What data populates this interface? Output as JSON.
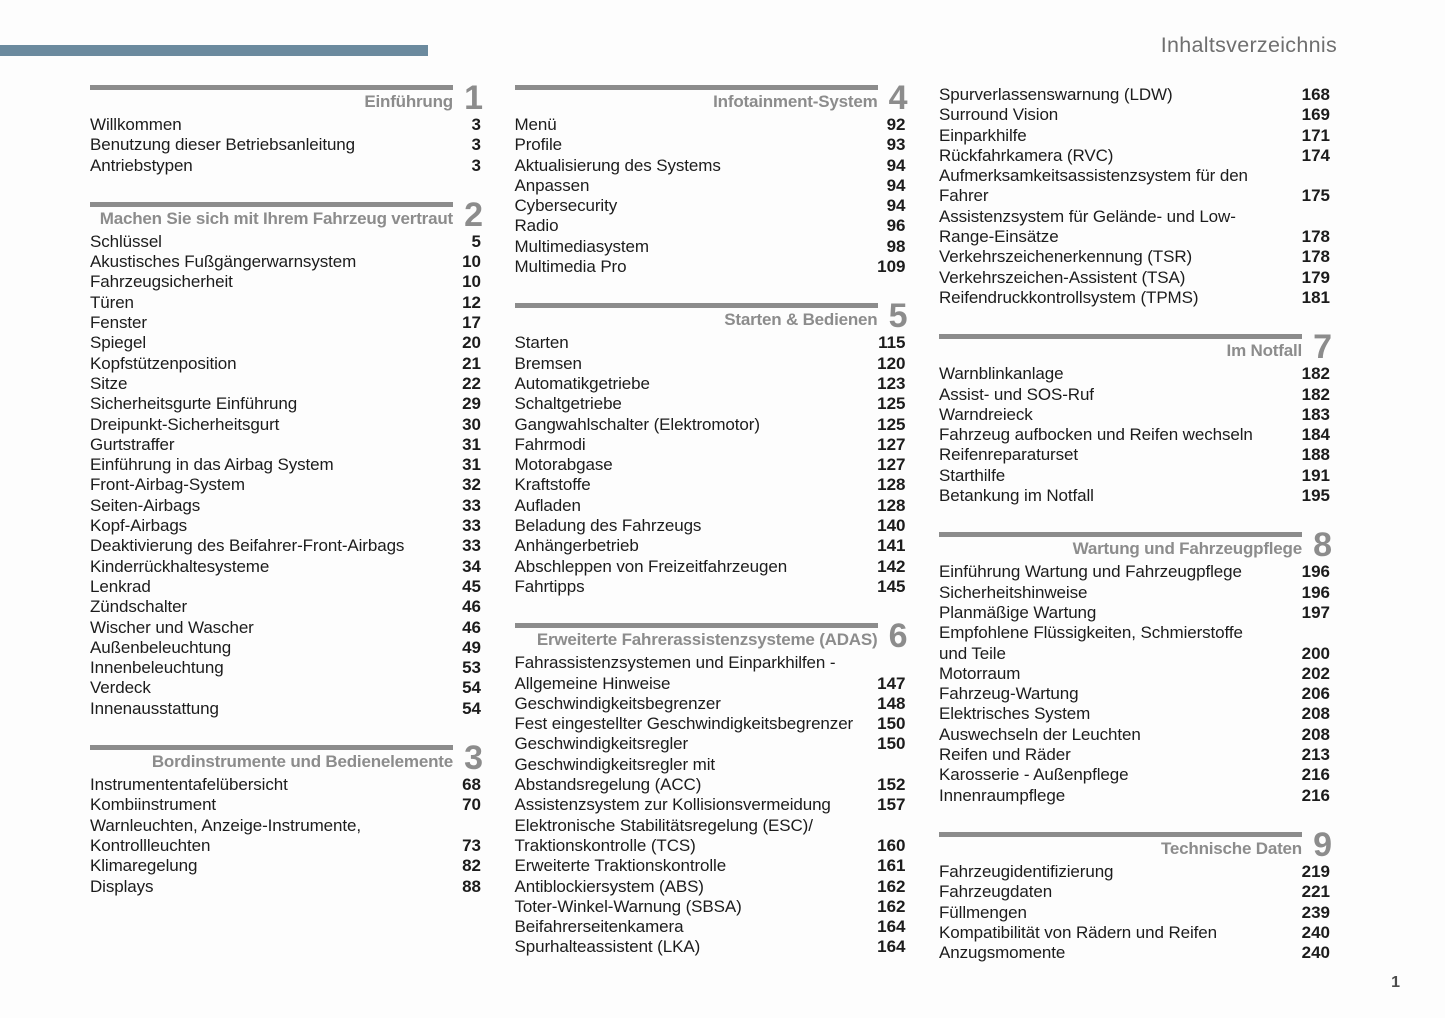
{
  "page": {
    "header_title": "Inhaltsverzeichnis",
    "footer_page_number": "1"
  },
  "colors": {
    "accent_bar": "#6b8a9e",
    "section_gray": "#8c8c8c",
    "text": "#1c1c1c",
    "header_gray": "#6f6f6f"
  },
  "columns": [
    {
      "sections": [
        {
          "number": "1",
          "title": "Einführung",
          "entries": [
            {
              "text": "Willkommen",
              "page": "3"
            },
            {
              "text": "Benutzung dieser Betriebsanleitung",
              "page": "3"
            },
            {
              "text": "Antriebstypen",
              "page": "3"
            }
          ]
        },
        {
          "number": "2",
          "title": "Machen Sie sich mit Ihrem Fahrzeug vertraut",
          "entries": [
            {
              "text": "Schlüssel",
              "page": "5"
            },
            {
              "text": "Akustisches Fußgängerwarnsystem",
              "page": "10"
            },
            {
              "text": "Fahrzeugsicherheit",
              "page": "10"
            },
            {
              "text": "Türen",
              "page": "12"
            },
            {
              "text": "Fenster",
              "page": "17"
            },
            {
              "text": "Spiegel",
              "page": "20"
            },
            {
              "text": "Kopfstützenposition",
              "page": "21"
            },
            {
              "text": "Sitze",
              "page": "22"
            },
            {
              "text": "Sicherheitsgurte Einführung",
              "page": "29"
            },
            {
              "text": "Dreipunkt-Sicherheitsgurt",
              "page": "30"
            },
            {
              "text": "Gurtstraffer",
              "page": "31"
            },
            {
              "text": "Einführung in das Airbag System",
              "page": "31"
            },
            {
              "text": "Front-Airbag-System",
              "page": "32"
            },
            {
              "text": "Seiten-Airbags",
              "page": "33"
            },
            {
              "text": "Kopf-Airbags",
              "page": "33"
            },
            {
              "text": "Deaktivierung des Beifahrer-Front-Airbags",
              "page": "33"
            },
            {
              "text": "Kinderrückhaltesysteme",
              "page": "34"
            },
            {
              "text": "Lenkrad",
              "page": "45"
            },
            {
              "text": "Zündschalter",
              "page": "46"
            },
            {
              "text": "Wischer und Wascher",
              "page": "46"
            },
            {
              "text": "Außenbeleuchtung",
              "page": "49"
            },
            {
              "text": "Innenbeleuchtung",
              "page": "53"
            },
            {
              "text": "Verdeck",
              "page": "54"
            },
            {
              "text": "Innenausstattung",
              "page": "54"
            }
          ]
        },
        {
          "number": "3",
          "title": "Bordinstrumente und Bedienelemente",
          "entries": [
            {
              "text": "Instrumententafelübersicht",
              "page": "68"
            },
            {
              "text": "Kombiinstrument",
              "page": "70"
            },
            {
              "text": "Warnleuchten, Anzeige-Instrumente,\nKontrollleuchten",
              "page": "73"
            },
            {
              "text": "Klimaregelung",
              "page": "82"
            },
            {
              "text": "Displays",
              "page": "88"
            }
          ]
        }
      ]
    },
    {
      "sections": [
        {
          "number": "4",
          "title": "Infotainment-System",
          "entries": [
            {
              "text": "Menü",
              "page": "92"
            },
            {
              "text": "Profile",
              "page": "93"
            },
            {
              "text": "Aktualisierung des Systems",
              "page": "94"
            },
            {
              "text": "Anpassen",
              "page": "94"
            },
            {
              "text": "Cybersecurity",
              "page": "94"
            },
            {
              "text": "Radio",
              "page": "96"
            },
            {
              "text": "Multimediasystem",
              "page": "98"
            },
            {
              "text": "Multimedia Pro",
              "page": "109"
            }
          ]
        },
        {
          "number": "5",
          "title": "Starten & Bedienen",
          "entries": [
            {
              "text": "Starten",
              "page": "115"
            },
            {
              "text": "Bremsen",
              "page": "120"
            },
            {
              "text": "Automatikgetriebe",
              "page": "123"
            },
            {
              "text": "Schaltgetriebe",
              "page": "125"
            },
            {
              "text": "Gangwahlschalter (Elektromotor)",
              "page": "125"
            },
            {
              "text": "Fahrmodi",
              "page": "127"
            },
            {
              "text": "Motorabgase",
              "page": "127"
            },
            {
              "text": "Kraftstoffe",
              "page": "128"
            },
            {
              "text": "Aufladen",
              "page": "128"
            },
            {
              "text": "Beladung des Fahrzeugs",
              "page": "140"
            },
            {
              "text": "Anhängerbetrieb",
              "page": "141"
            },
            {
              "text": "Abschleppen von Freizeitfahrzeugen",
              "page": "142"
            },
            {
              "text": "Fahrtipps",
              "page": "145"
            }
          ]
        },
        {
          "number": "6",
          "title": "Erweiterte Fahrerassistenzsysteme (ADAS)",
          "entries": [
            {
              "text": "Fahrassistenzsystemen und Einparkhilfen -\nAllgemeine Hinweise",
              "page": "147"
            },
            {
              "text": "Geschwindigkeitsbegrenzer",
              "page": "148"
            },
            {
              "text": "Fest eingestellter Geschwindigkeitsbegrenzer",
              "page": "150"
            },
            {
              "text": "Geschwindigkeitsregler",
              "page": "150"
            },
            {
              "text": "Geschwindigkeitsregler mit\nAbstandsregelung (ACC)",
              "page": "152"
            },
            {
              "text": "Assistenzsystem zur Kollisionsvermeidung",
              "page": "157"
            },
            {
              "text": "Elektronische Stabilitätsregelung (ESC)/\nTraktionskontrolle (TCS)",
              "page": "160"
            },
            {
              "text": "Erweiterte Traktionskontrolle",
              "page": "161"
            },
            {
              "text": "Antiblockiersystem (ABS)",
              "page": "162"
            },
            {
              "text": "Toter-Winkel-Warnung (SBSA)",
              "page": "162"
            },
            {
              "text": "Beifahrerseitenkamera",
              "page": "164"
            },
            {
              "text": "Spurhalteassistent (LKA)",
              "page": "164"
            }
          ]
        }
      ]
    },
    {
      "sections": [
        {
          "number": null,
          "title": null,
          "entries": [
            {
              "text": "Spurverlassenswarnung (LDW)",
              "page": "168"
            },
            {
              "text": "Surround Vision",
              "page": "169"
            },
            {
              "text": "Einparkhilfe",
              "page": "171"
            },
            {
              "text": "Rückfahrkamera (RVC)",
              "page": "174"
            },
            {
              "text": "Aufmerksamkeitsassistenzsystem für den\nFahrer",
              "page": "175"
            },
            {
              "text": "Assistenzsystem für Gelände- und Low-\nRange-Einsätze",
              "page": "178"
            },
            {
              "text": "Verkehrszeichenerkennung (TSR)",
              "page": "178"
            },
            {
              "text": "Verkehrszeichen-Assistent (TSA)",
              "page": "179"
            },
            {
              "text": "Reifendruckkontrollsystem (TPMS)",
              "page": "181"
            }
          ]
        },
        {
          "number": "7",
          "title": "Im Notfall",
          "entries": [
            {
              "text": "Warnblinkanlage",
              "page": "182"
            },
            {
              "text": "Assist- und SOS-Ruf",
              "page": "182"
            },
            {
              "text": "Warndreieck",
              "page": "183"
            },
            {
              "text": "Fahrzeug aufbocken und Reifen wechseln",
              "page": "184"
            },
            {
              "text": "Reifenreparaturset",
              "page": "188"
            },
            {
              "text": "Starthilfe",
              "page": "191"
            },
            {
              "text": "Betankung im Notfall",
              "page": "195"
            }
          ]
        },
        {
          "number": "8",
          "title": "Wartung und Fahrzeugpflege",
          "entries": [
            {
              "text": "Einführung Wartung und Fahrzeugpflege",
              "page": "196"
            },
            {
              "text": "Sicherheitshinweise",
              "page": "196"
            },
            {
              "text": "Planmäßige Wartung",
              "page": "197"
            },
            {
              "text": "Empfohlene Flüssigkeiten, Schmierstoffe\nund Teile",
              "page": "200"
            },
            {
              "text": "Motorraum",
              "page": "202"
            },
            {
              "text": "Fahrzeug-Wartung",
              "page": "206"
            },
            {
              "text": "Elektrisches System",
              "page": "208"
            },
            {
              "text": "Auswechseln der Leuchten",
              "page": "208"
            },
            {
              "text": "Reifen und Räder",
              "page": "213"
            },
            {
              "text": "Karosserie - Außenpflege",
              "page": "216"
            },
            {
              "text": "Innenraumpflege",
              "page": "216"
            }
          ]
        },
        {
          "number": "9",
          "title": "Technische Daten",
          "entries": [
            {
              "text": "Fahrzeugidentifizierung",
              "page": "219"
            },
            {
              "text": "Fahrzeugdaten",
              "page": "221"
            },
            {
              "text": "Füllmengen",
              "page": "239"
            },
            {
              "text": "Kompatibilität von Rädern und Reifen",
              "page": "240"
            },
            {
              "text": "Anzugsmomente",
              "page": "240"
            }
          ]
        }
      ]
    }
  ]
}
